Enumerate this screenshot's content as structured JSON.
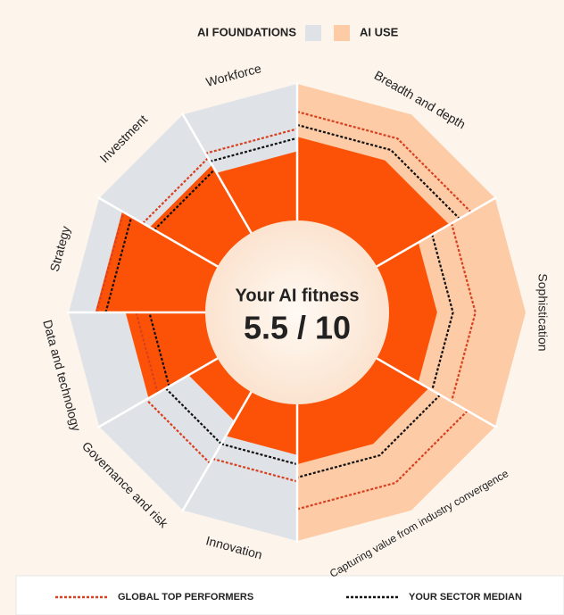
{
  "chart_data": {
    "type": "radial-sectors",
    "center_title": "Your AI fitness",
    "center_value": "5.5 / 10",
    "rlim": [
      0,
      10
    ],
    "color": "#fc5208",
    "benchmarks": [
      {
        "name": "GLOBAL TOP PERFORMERS",
        "color": "#d9401f"
      },
      {
        "name": "YOUR SECTOR MEDIAN",
        "color": "#111111"
      }
    ],
    "groups": [
      {
        "name": "AI FOUNDATIONS",
        "color": "#dfe3e8",
        "categories": [
          "Innovation",
          "Governance and risk",
          "Data and technology",
          "Strategy",
          "Investment",
          "Workforce"
        ],
        "values": [
          3.7,
          2.4,
          5.9,
          8.2,
          5.8,
          5.1
        ],
        "benchmark_values": [
          [
            5.7,
            6.1,
            5.1,
            8.1,
            6.4,
            6.8
          ],
          [
            4.4,
            4.4,
            4.1,
            7.4,
            5.4,
            6.1
          ]
        ]
      },
      {
        "name": "AI USE",
        "color": "#fdcba6",
        "categories": [
          "Breadth and depth",
          "Sophistication",
          "Capturing value from industry convergence"
        ],
        "values": [
          6.2,
          3.5,
          4.4
        ],
        "benchmark_values": [
          [
            8.1,
            6.4,
            7.8
          ],
          [
            7.1,
            4.7,
            5.4
          ]
        ]
      }
    ]
  }
}
